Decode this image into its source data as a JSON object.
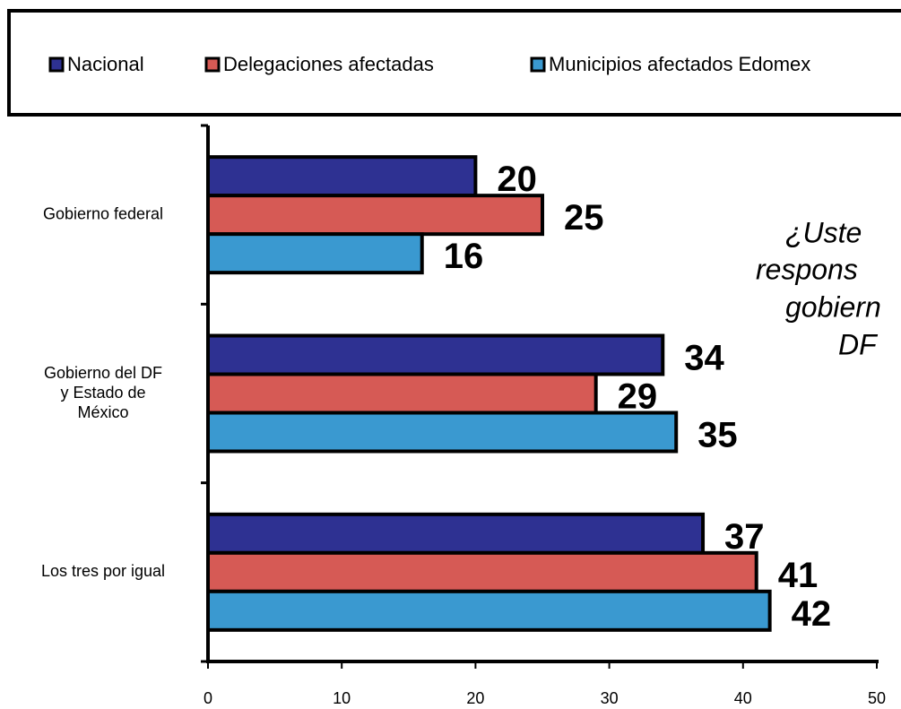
{
  "chart_data": {
    "type": "bar",
    "orientation": "horizontal",
    "categories": [
      "Gobierno federal",
      "Gobierno del DF\ny Estado de\nMéxico",
      "Los tres por igual"
    ],
    "series": [
      {
        "name": "Nacional",
        "color": "#2e3192",
        "values": [
          20,
          34,
          37
        ]
      },
      {
        "name": "Delegaciones afectadas",
        "color": "#d65a55",
        "values": [
          25,
          29,
          41
        ]
      },
      {
        "name": "Municipios afectados Edomex",
        "color": "#3a99d0",
        "values": [
          16,
          35,
          42
        ]
      }
    ],
    "xlim": [
      0,
      50
    ],
    "xticks": [
      0,
      10,
      20,
      30,
      40,
      50
    ],
    "annotation": [
      "¿Uste",
      "respons",
      "gobiern",
      "DF"
    ]
  }
}
